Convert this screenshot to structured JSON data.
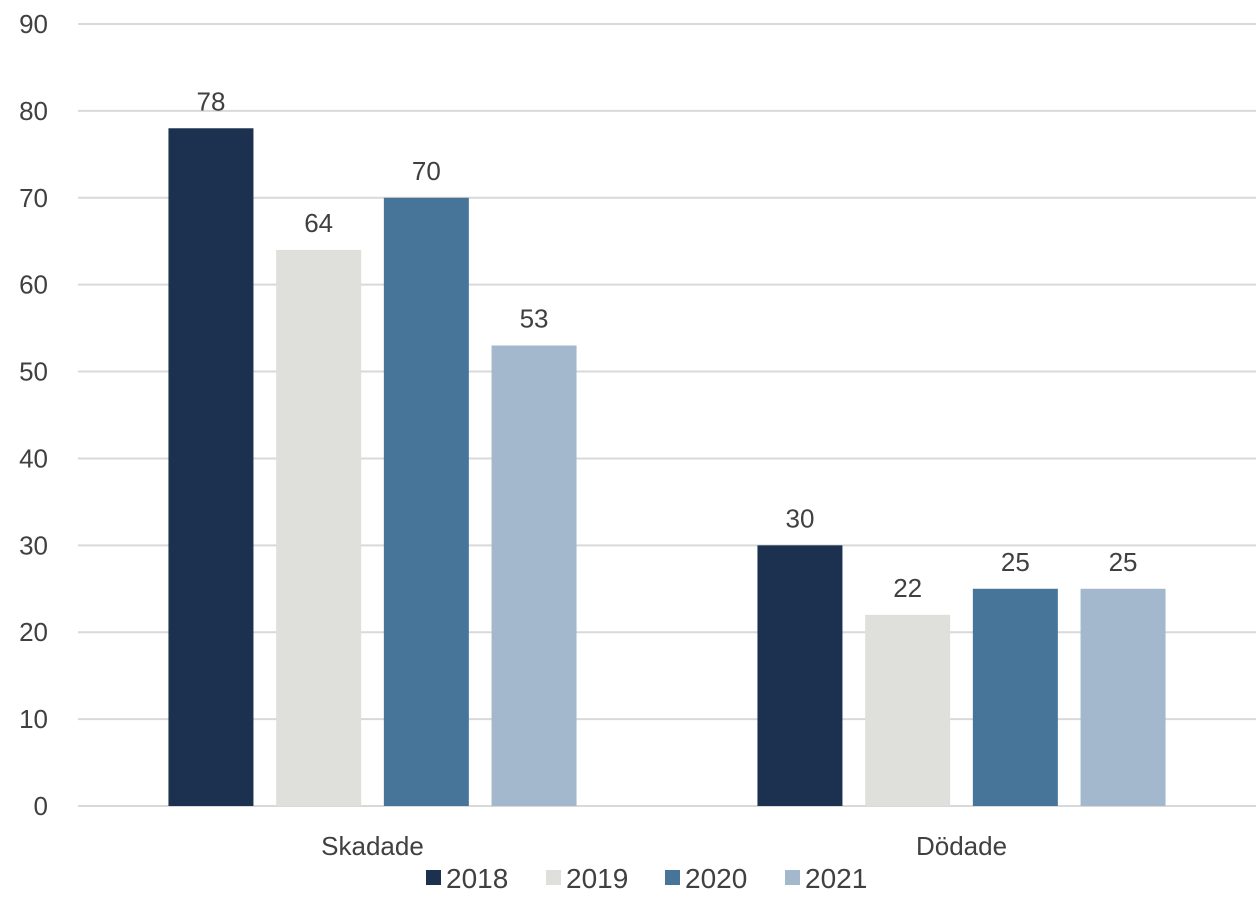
{
  "chart_data": {
    "type": "bar",
    "categories": [
      "Skadade",
      "Dödade"
    ],
    "series": [
      {
        "name": "2018",
        "values": [
          78,
          30
        ],
        "color": "#1c3050"
      },
      {
        "name": "2019",
        "values": [
          64,
          22
        ],
        "color": "#dfdfdc"
      },
      {
        "name": "2020",
        "values": [
          70,
          25
        ],
        "color": "#477599"
      },
      {
        "name": "2021",
        "values": [
          53,
          25
        ],
        "color": "#a3b8cc"
      }
    ],
    "ylim": [
      0,
      90
    ],
    "yticks": [
      0,
      10,
      20,
      30,
      40,
      50,
      60,
      70,
      80,
      90
    ],
    "grid": true,
    "legend_position": "bottom",
    "data_labels": true
  }
}
